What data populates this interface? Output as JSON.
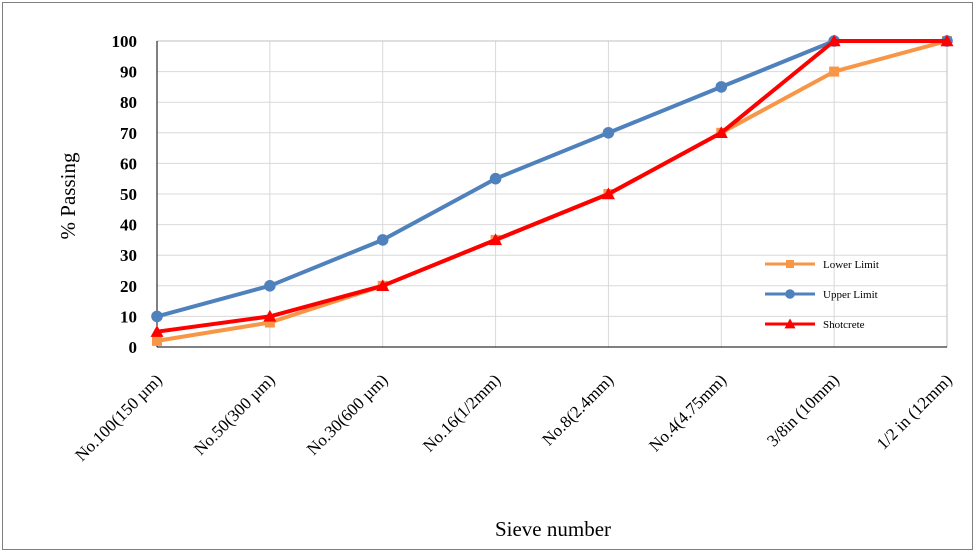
{
  "chart_data": {
    "type": "line",
    "title": "",
    "xlabel": "Sieve number",
    "ylabel": "% Passing",
    "categories": [
      "No.100(150 µm)",
      "No.50(300 µm)",
      "No.30(600 µm)",
      "No.16(1/2mm)",
      "No.8(2.4mm)",
      "No.4(4.75mm)",
      "3/8in (10mm)",
      "1/2 in (12mm)"
    ],
    "ylim": [
      0,
      100
    ],
    "yticks": [
      0,
      10,
      20,
      30,
      40,
      50,
      60,
      70,
      80,
      90,
      100
    ],
    "grid": true,
    "legend_position": "lower-right",
    "series": [
      {
        "name": "Lower Limit",
        "color": "#f79646",
        "marker": "square",
        "values": [
          2,
          8,
          20,
          35,
          50,
          70,
          90,
          100
        ]
      },
      {
        "name": "Upper Limit",
        "color": "#4f81bd",
        "marker": "circle",
        "values": [
          10,
          20,
          35,
          55,
          70,
          85,
          100,
          100
        ]
      },
      {
        "name": "Shotcrete",
        "color": "#ff0000",
        "marker": "triangle",
        "values": [
          5,
          10,
          20,
          35,
          50,
          70,
          100,
          100
        ]
      }
    ]
  }
}
